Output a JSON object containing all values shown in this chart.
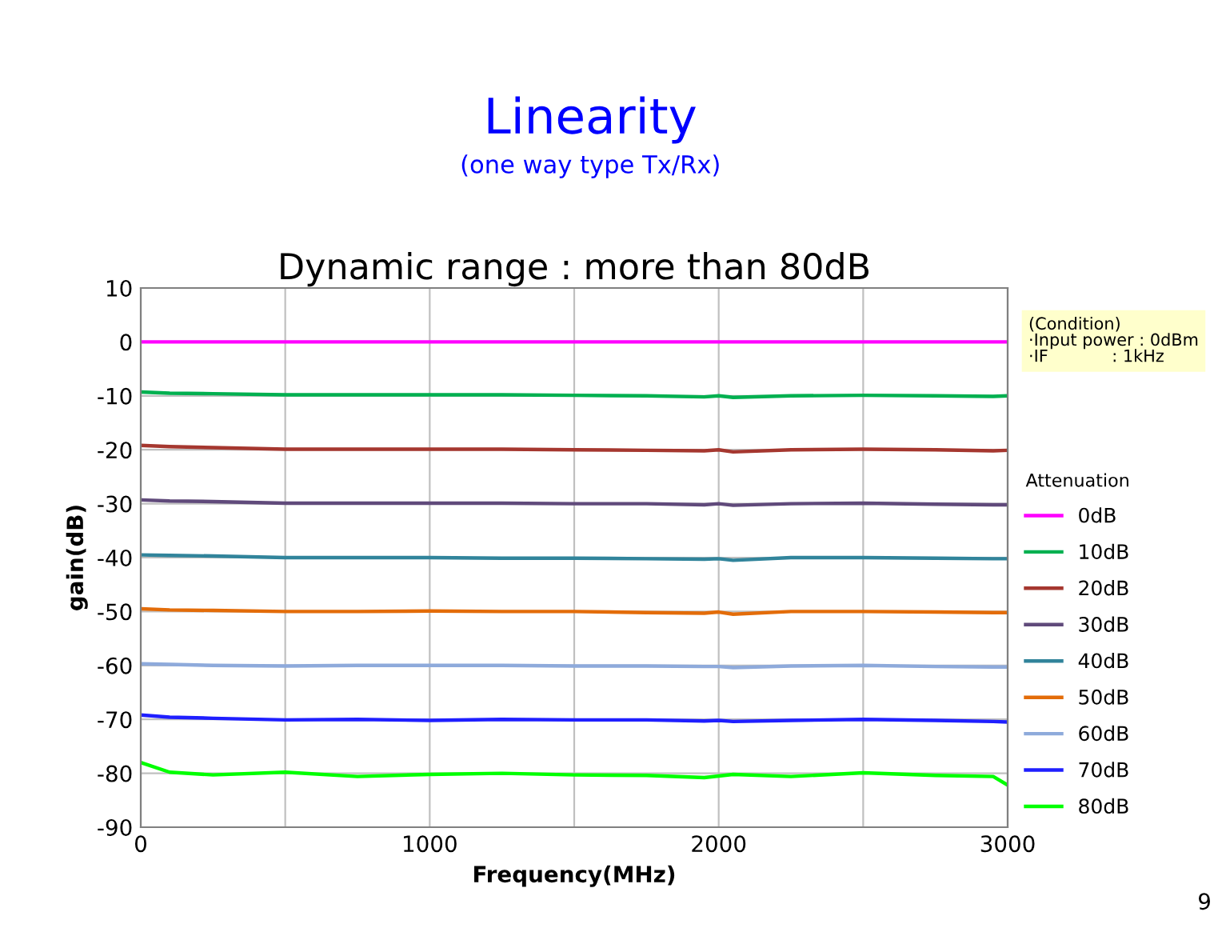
{
  "chart_data": {
    "type": "line",
    "title": "Linearity",
    "subtitle": "(one way type Tx/Rx)",
    "xlabel": "Frequency(MHz)",
    "ylabel": "gain(dB)",
    "legend_title": "Attenuation",
    "annotations": [
      "Dynamic range : more than 80dB",
      "(Condition)\n·Input power : 0dBm\n·IF            : 1kHz",
      "9"
    ],
    "x": [
      0,
      100,
      250,
      500,
      750,
      1000,
      1250,
      1500,
      1750,
      1950,
      2000,
      2050,
      2250,
      2500,
      2750,
      2950,
      3000
    ],
    "series": [
      {
        "name": "0dB",
        "color": "#ff00ff",
        "values": [
          0,
          0,
          0,
          0,
          0,
          0,
          0,
          0,
          0,
          0,
          0,
          0,
          0,
          0,
          0,
          0,
          0
        ]
      },
      {
        "name": "10dB",
        "color": "#00b050",
        "values": [
          -9.3,
          -9.5,
          -9.6,
          -9.8,
          -9.8,
          -9.8,
          -9.8,
          -9.9,
          -10.0,
          -10.2,
          -10.0,
          -10.3,
          -10.0,
          -9.9,
          -10.0,
          -10.1,
          -10.0
        ]
      },
      {
        "name": "20dB",
        "color": "#a5372f",
        "values": [
          -19.2,
          -19.4,
          -19.6,
          -19.9,
          -19.9,
          -19.9,
          -19.9,
          -20.0,
          -20.1,
          -20.2,
          -20.0,
          -20.4,
          -20.0,
          -19.9,
          -20.0,
          -20.2,
          -20.1
        ]
      },
      {
        "name": "30dB",
        "color": "#604a7b",
        "values": [
          -29.3,
          -29.5,
          -29.6,
          -29.9,
          -29.9,
          -29.9,
          -29.9,
          -30.0,
          -30.0,
          -30.2,
          -30.0,
          -30.3,
          -30.0,
          -29.9,
          -30.1,
          -30.2,
          -30.2
        ]
      },
      {
        "name": "40dB",
        "color": "#31849b",
        "values": [
          -39.5,
          -39.6,
          -39.7,
          -40.0,
          -40.0,
          -40.0,
          -40.1,
          -40.1,
          -40.2,
          -40.3,
          -40.2,
          -40.5,
          -40.0,
          -40.0,
          -40.1,
          -40.2,
          -40.2
        ]
      },
      {
        "name": "50dB",
        "color": "#e36c09",
        "values": [
          -49.5,
          -49.7,
          -49.8,
          -50.0,
          -50.0,
          -49.9,
          -50.0,
          -50.0,
          -50.2,
          -50.3,
          -50.1,
          -50.5,
          -50.0,
          -50.0,
          -50.1,
          -50.2,
          -50.2
        ]
      },
      {
        "name": "60dB",
        "color": "#8eaadb",
        "values": [
          -59.7,
          -59.8,
          -60.0,
          -60.1,
          -60.0,
          -60.0,
          -60.0,
          -60.1,
          -60.1,
          -60.2,
          -60.2,
          -60.4,
          -60.1,
          -60.0,
          -60.2,
          -60.3,
          -60.3
        ]
      },
      {
        "name": "70dB",
        "color": "#1f1fff",
        "values": [
          -69.2,
          -69.6,
          -69.8,
          -70.1,
          -70.0,
          -70.2,
          -70.0,
          -70.1,
          -70.1,
          -70.3,
          -70.2,
          -70.4,
          -70.2,
          -70.0,
          -70.2,
          -70.4,
          -70.5
        ]
      },
      {
        "name": "80dB",
        "color": "#00ff00",
        "values": [
          -78.0,
          -79.8,
          -80.3,
          -79.8,
          -80.6,
          -80.2,
          -80.0,
          -80.3,
          -80.4,
          -80.8,
          -80.5,
          -80.2,
          -80.6,
          -79.9,
          -80.4,
          -80.6,
          -82.2
        ]
      }
    ],
    "xlim": [
      0,
      3000
    ],
    "xticks": [
      0,
      {
        "value": 500,
        "label": null
      },
      1000,
      {
        "value": 1500,
        "label": null
      },
      2000,
      {
        "value": 2500,
        "label": null
      },
      3000
    ],
    "ylim": [
      -90,
      10
    ],
    "yticks": [
      10,
      0,
      -10,
      -20,
      -30,
      -40,
      -50,
      -60,
      -70,
      -80,
      -90
    ],
    "grid": true,
    "legend": "right",
    "marker": "none",
    "line_style": "solid"
  }
}
